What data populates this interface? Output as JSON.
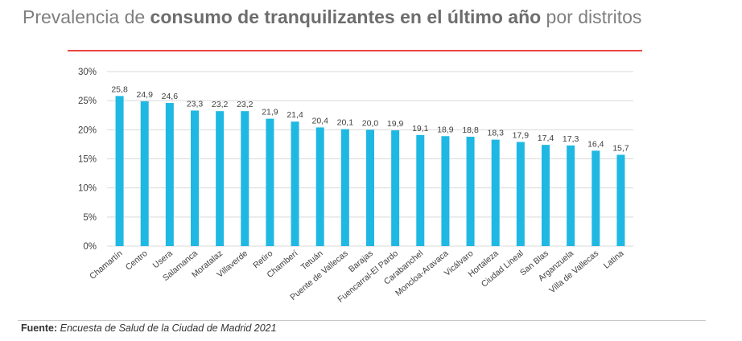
{
  "header": {
    "title_part1": "Prevalencia de ",
    "title_bold": "consumo de tranquilizantes en el último año",
    "title_part2": " por distritos"
  },
  "source": {
    "label": "Fuente:",
    "text": "Encuesta de Salud de la Ciudad de Madrid 2021"
  },
  "colors": {
    "bar": "#1fb8e3",
    "title": "#7f7f7f",
    "rule": "#e8463f",
    "grid": "#d9d9d9"
  },
  "chart_data": {
    "type": "bar",
    "title": "Prevalencia de consumo de tranquilizantes en el último año por distritos",
    "xlabel": "",
    "ylabel": "",
    "ylim": [
      0,
      30
    ],
    "yticks": [
      "0%",
      "5%",
      "10%",
      "15%",
      "20%",
      "25%",
      "30%"
    ],
    "ytick_values": [
      0,
      5,
      10,
      15,
      20,
      25,
      30
    ],
    "grid": true,
    "categories": [
      "Chamartín",
      "Centro",
      "Usera",
      "Salamanca",
      "Moratalaz",
      "Villaverde",
      "Retiro",
      "Chamberí",
      "Tetuán",
      "Puente de Vallecas",
      "Barajas",
      "Fuencarral-El Pardo",
      "Carabanchel",
      "Moncloa-Aravaca",
      "Vicálvaro",
      "Hortaleza",
      "Ciudad Lineal",
      "San Blas",
      "Arganzuela",
      "Villa de Vallecas",
      "Latina"
    ],
    "values": [
      25.8,
      24.9,
      24.6,
      23.3,
      23.2,
      23.2,
      21.9,
      21.4,
      20.4,
      20.1,
      20.0,
      19.9,
      19.1,
      18.9,
      18.8,
      18.3,
      17.9,
      17.4,
      17.3,
      16.4,
      15.7
    ],
    "value_labels": [
      "25,8",
      "24,9",
      "24,6",
      "23,3",
      "23,2",
      "23,2",
      "21,9",
      "21,4",
      "20,4",
      "20,1",
      "20,0",
      "19,9",
      "19,1",
      "18,9",
      "18,8",
      "18,3",
      "17,9",
      "17,4",
      "17,3",
      "16,4",
      "15,7"
    ]
  }
}
